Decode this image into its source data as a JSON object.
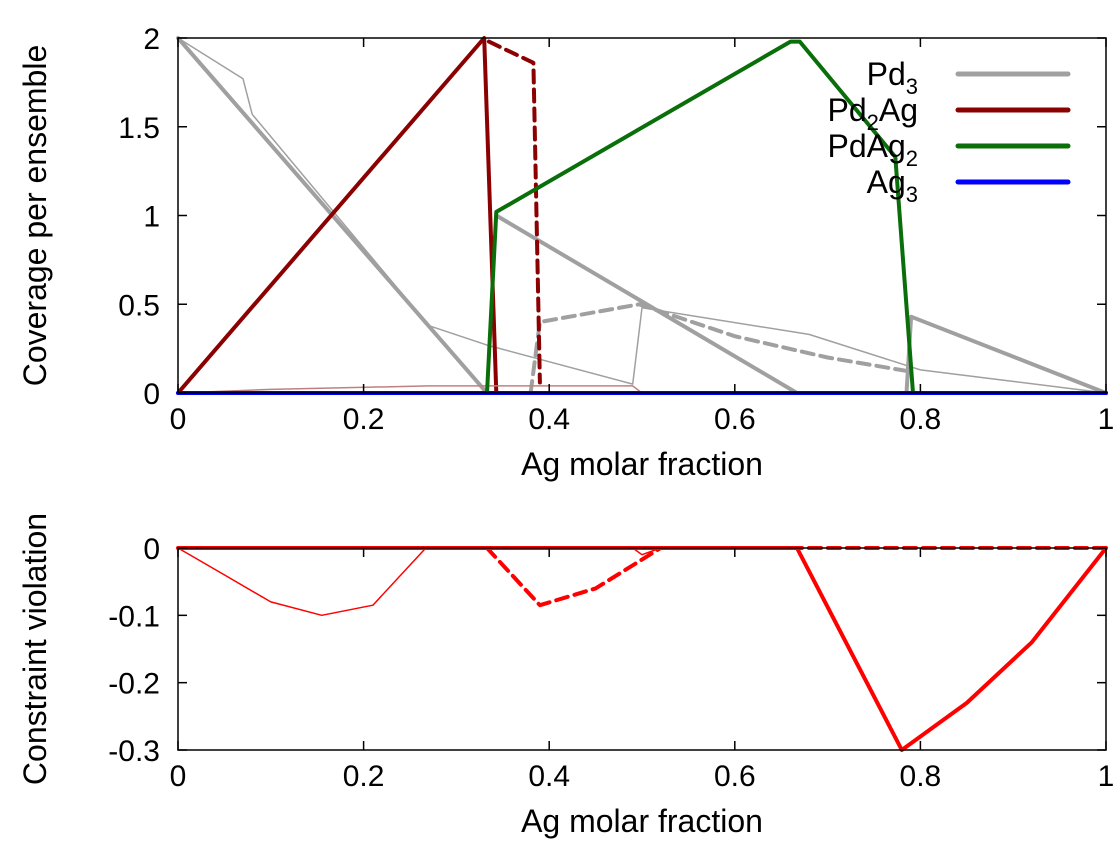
{
  "chart_data": [
    {
      "type": "line",
      "xlabel": "Ag molar fraction",
      "ylabel": "Coverage per ensemble",
      "xlim": [
        0,
        1
      ],
      "ylim": [
        0,
        2
      ],
      "xticks": [
        "0",
        "0.2",
        "0.4",
        "0.6",
        "0.8",
        "1"
      ],
      "yticks": [
        "0",
        "0.5",
        "1",
        "1.5",
        "2"
      ],
      "grid": false,
      "legend_position": "top-right",
      "legend": [
        {
          "base": "Pd",
          "sub": "3",
          "rest": "",
          "color": "#a0a0a0"
        },
        {
          "base": "Pd",
          "sub": "2",
          "rest": "Ag",
          "color": "#8b0000"
        },
        {
          "base": "PdAg",
          "sub": "2",
          "rest": "",
          "color": "#0a6e0a"
        },
        {
          "base": "Ag",
          "sub": "3",
          "rest": "",
          "color": "#0000ff"
        }
      ],
      "series": [
        {
          "name": "Pd3",
          "color": "#a0a0a0",
          "style": "thick",
          "points": [
            [
              0,
              2
            ],
            [
              0.333,
              0
            ],
            [
              1,
              0
            ]
          ]
        },
        {
          "name": "Pd3",
          "color": "#a0a0a0",
          "style": "thick",
          "points": [
            [
              0.343,
              1
            ],
            [
              0.667,
              0
            ]
          ]
        },
        {
          "name": "Pd3",
          "color": "#a0a0a0",
          "style": "thick",
          "points": [
            [
              0.785,
              0
            ],
            [
              0.79,
              0.43
            ],
            [
              1,
              0
            ]
          ]
        },
        {
          "name": "Pd3",
          "color": "#a0a0a0",
          "style": "thick-dashed",
          "points": [
            [
              0.38,
              0
            ],
            [
              0.39,
              0.4
            ],
            [
              0.497,
              0.5
            ],
            [
              0.6,
              0.32
            ],
            [
              0.7,
              0.2
            ],
            [
              0.79,
              0.12
            ]
          ]
        },
        {
          "name": "Pd3",
          "color": "#a0a0a0",
          "style": "thin",
          "points": [
            [
              0,
              2
            ],
            [
              0.07,
              1.77
            ],
            [
              0.08,
              1.57
            ],
            [
              0.27,
              0.38
            ],
            [
              0.333,
              0.27
            ],
            [
              0.49,
              0.05
            ],
            [
              0.5,
              0.48
            ],
            [
              0.68,
              0.33
            ],
            [
              0.8,
              0.13
            ],
            [
              1,
              0
            ]
          ]
        },
        {
          "name": "Pd2Ag",
          "color": "#8b0000",
          "style": "thick",
          "points": [
            [
              0,
              0
            ],
            [
              0.33,
              2
            ],
            [
              0.343,
              0
            ],
            [
              1,
              0
            ]
          ]
        },
        {
          "name": "Pd2Ag",
          "color": "#8b0000",
          "style": "thick-dashed",
          "points": [
            [
              0.335,
              1.98
            ],
            [
              0.383,
              1.86
            ],
            [
              0.39,
              0.06
            ]
          ]
        },
        {
          "name": "Pd2Ag",
          "color": "#c08080",
          "style": "thin",
          "points": [
            [
              0,
              0
            ],
            [
              0.1,
              0.02
            ],
            [
              0.27,
              0.04
            ],
            [
              0.49,
              0.04
            ],
            [
              0.5,
              0
            ]
          ]
        },
        {
          "name": "PdAg2",
          "color": "#0a6e0a",
          "style": "thick",
          "points": [
            [
              0.333,
              0
            ],
            [
              0.343,
              1.02
            ],
            [
              0.66,
              1.98
            ],
            [
              0.67,
              1.98
            ],
            [
              0.773,
              1.33
            ],
            [
              0.792,
              0
            ]
          ]
        },
        {
          "name": "Ag3",
          "color": "#0000ff",
          "style": "thick",
          "points": [
            [
              0,
              0
            ],
            [
              1,
              0
            ]
          ]
        }
      ]
    },
    {
      "type": "line",
      "xlabel": "Ag molar fraction",
      "ylabel": "Constraint violation",
      "xlim": [
        0,
        1
      ],
      "ylim": [
        -0.3,
        0
      ],
      "xticks": [
        "0",
        "0.2",
        "0.4",
        "0.6",
        "0.8",
        "1"
      ],
      "yticks": [
        "0",
        "-0.1",
        "-0.2",
        "-0.3"
      ],
      "grid": false,
      "series": [
        {
          "name": "Violation",
          "color": "#ff0000",
          "style": "thick",
          "points": [
            [
              0,
              0
            ],
            [
              0.667,
              0
            ],
            [
              0.78,
              -0.3
            ],
            [
              0.85,
              -0.23
            ],
            [
              0.92,
              -0.14
            ],
            [
              1,
              0
            ]
          ]
        },
        {
          "name": "Violation",
          "color": "#ff0000",
          "style": "thick-dashed",
          "points": [
            [
              0.333,
              0
            ],
            [
              0.39,
              -0.085
            ],
            [
              0.45,
              -0.06
            ],
            [
              0.52,
              0
            ],
            [
              1,
              0
            ]
          ]
        },
        {
          "name": "Violation",
          "color": "#ff0000",
          "style": "thin",
          "points": [
            [
              0,
              0
            ],
            [
              0.05,
              -0.04
            ],
            [
              0.1,
              -0.08
            ],
            [
              0.155,
              -0.1
            ],
            [
              0.21,
              -0.085
            ],
            [
              0.267,
              0
            ],
            [
              0.49,
              0
            ],
            [
              0.5,
              -0.01
            ],
            [
              0.52,
              0
            ]
          ]
        }
      ]
    }
  ]
}
